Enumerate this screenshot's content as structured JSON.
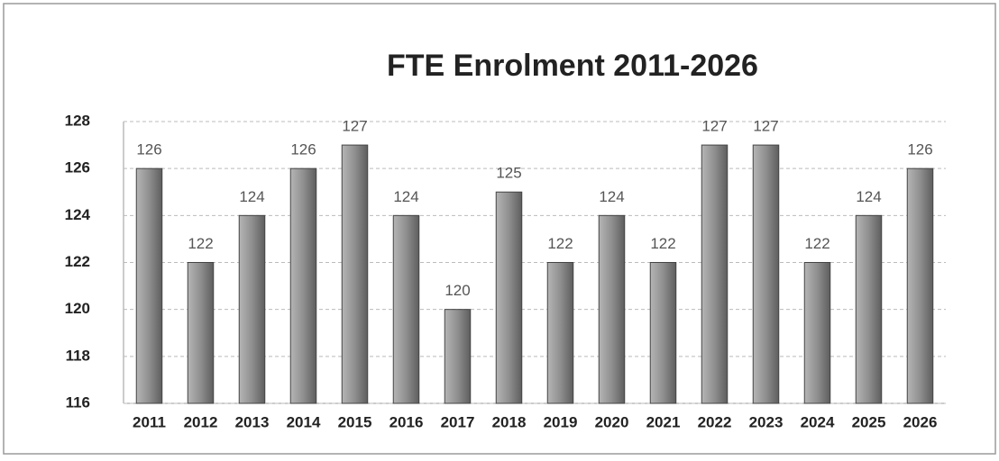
{
  "chart_data": {
    "type": "bar",
    "title": "FTE Enrolment 2011-2026",
    "categories": [
      "2011",
      "2012",
      "2013",
      "2014",
      "2015",
      "2016",
      "2017",
      "2018",
      "2019",
      "2020",
      "2021",
      "2022",
      "2023",
      "2024",
      "2025",
      "2026"
    ],
    "values": [
      126,
      122,
      124,
      126,
      127,
      124,
      120,
      125,
      122,
      124,
      122,
      127,
      127,
      122,
      124,
      126
    ],
    "color": "#8c8c8c",
    "ylim": [
      116,
      128
    ],
    "yticks": [
      116,
      118,
      120,
      122,
      124,
      126,
      128
    ],
    "grid": true
  }
}
